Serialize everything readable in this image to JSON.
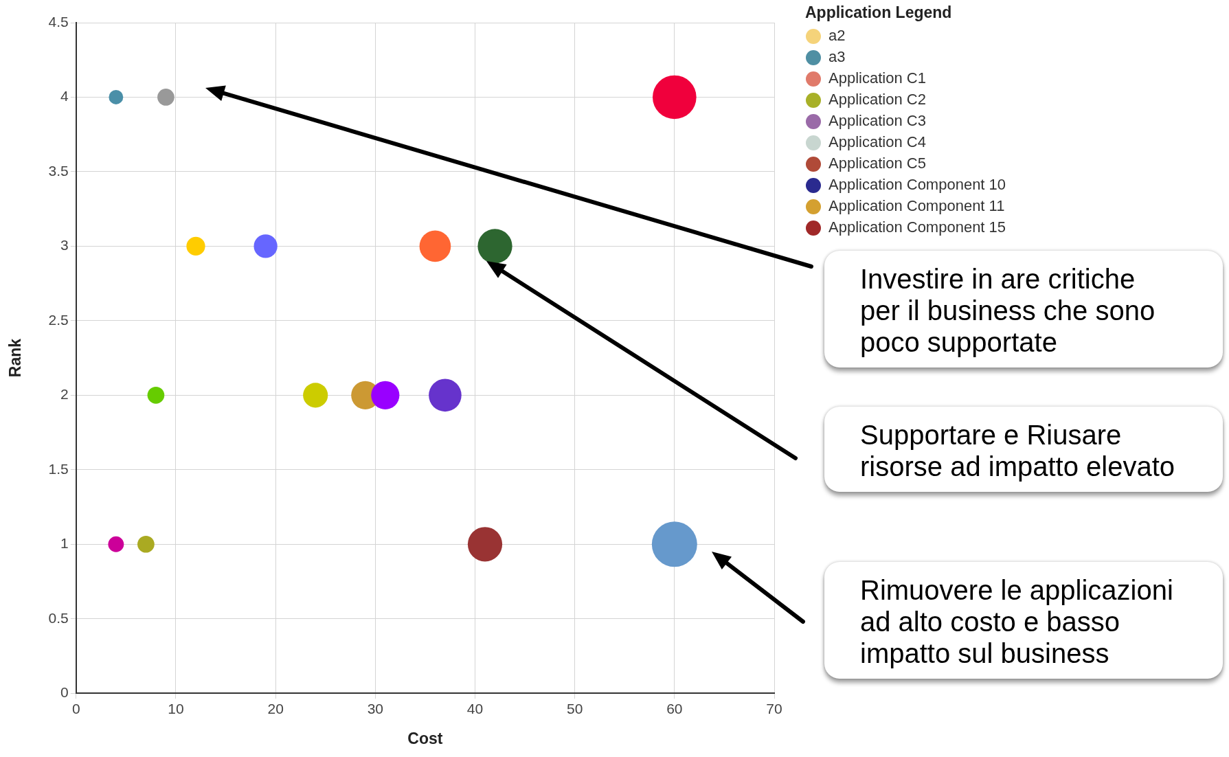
{
  "chart_data": {
    "type": "bubble",
    "xlabel": "Cost",
    "ylabel": "Rank",
    "legend_title": "Application Legend",
    "legend": "top right",
    "grid": true,
    "xlim": [
      0,
      70
    ],
    "xticks": [
      0,
      10,
      20,
      30,
      40,
      50,
      60,
      70
    ],
    "ylim": [
      0,
      4.5
    ],
    "yticks": [
      0,
      0.5,
      1,
      1.5,
      2,
      2.5,
      3,
      3.5,
      4,
      4.5
    ],
    "series": [
      {
        "x": [
          4,
          9,
          60,
          12,
          19,
          36,
          42,
          8,
          24,
          29,
          31,
          37,
          4,
          7,
          41,
          60
        ],
        "values": [
          4,
          4,
          4,
          3,
          3,
          3,
          3,
          2,
          2,
          2,
          2,
          2,
          1,
          1,
          1,
          1
        ],
        "sizes": [
          0.1,
          0.14,
          0.93,
          0.17,
          0.27,
          0.48,
          0.58,
          0.14,
          0.3,
          0.39,
          0.39,
          0.52,
          0.12,
          0.14,
          0.58,
          1
        ],
        "colors": [
          "#4a8fa8",
          "#999999",
          "#f0003c",
          "#ffcc00",
          "#6666ff",
          "#ff6633",
          "#2d6630",
          "#66cc00",
          "#cccc00",
          "#cc9933",
          "#9900ff",
          "#6633cc",
          "#cc0099",
          "#aaaa22",
          "#993333",
          "#6699cc"
        ]
      },
      {
        "name": "a2",
        "color": "#f5d37a"
      },
      {
        "name": "a3",
        "color": "#4f8fa3"
      },
      {
        "name": "Application C1",
        "color": "#e07a6a"
      },
      {
        "name": "Application C2",
        "color": "#a8b028"
      },
      {
        "name": "Application C3",
        "color": "#9a6aa8"
      },
      {
        "name": "Application C4",
        "color": "#c8d6d0"
      },
      {
        "name": "Application C5",
        "color": "#b04a38"
      },
      {
        "name": "Application Component 10",
        "color": "#2a2a8f"
      },
      {
        "name": "Application Component 11",
        "color": "#d4a030"
      },
      {
        "name": "Application Component 15",
        "color": "#a02828"
      }
    ],
    "annotations": [
      "Investire in are critiche per il business che sono poco supportate",
      "Supportare e Riusare risorse ad impatto elevato",
      "Rimuovere le applicazioni ad alto costo e basso impatto sul business"
    ]
  }
}
